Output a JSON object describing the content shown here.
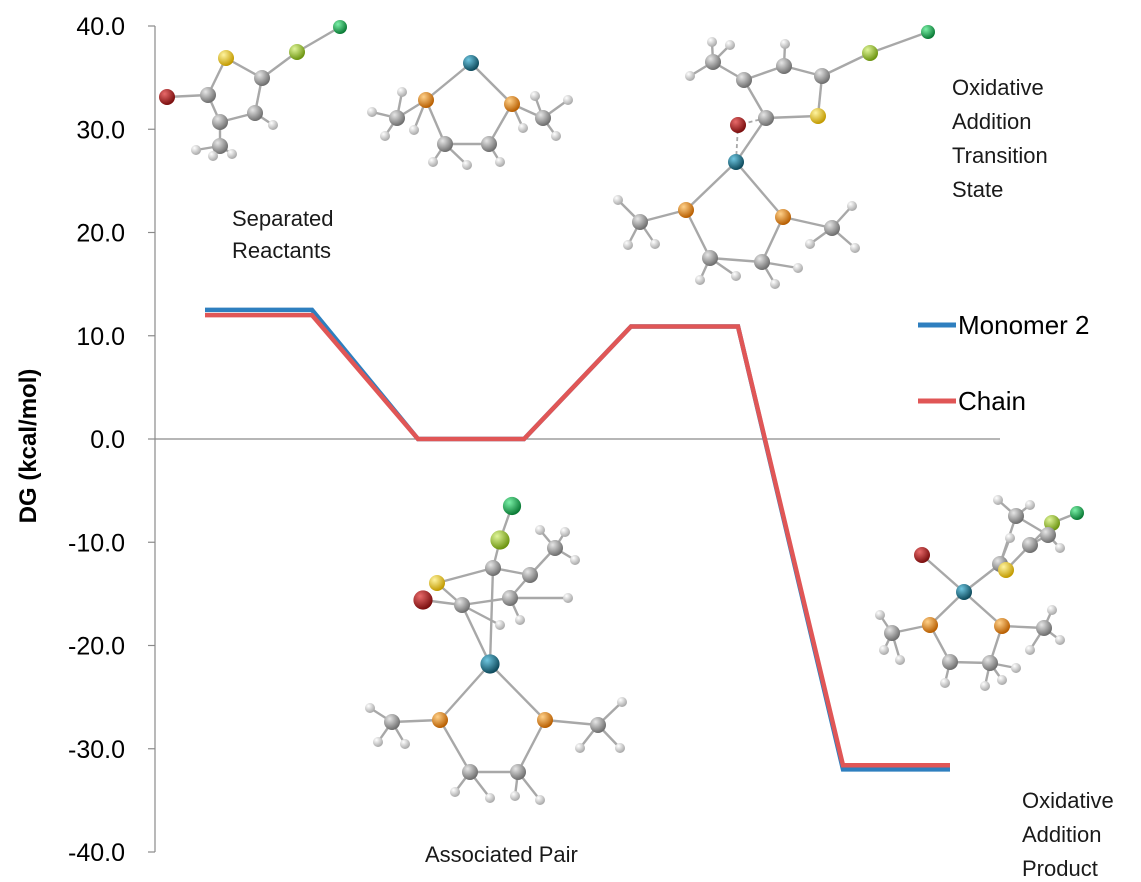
{
  "chart_data": {
    "type": "line",
    "title": "",
    "ylabel": "DG (kcal/mol)",
    "xlabel": "",
    "ylim": [
      -40,
      40
    ],
    "yticks": [
      "40.0",
      "30.0",
      "20.0",
      "10.0",
      "0.0",
      "-10.0",
      "-20.0",
      "-30.0",
      "-40.0"
    ],
    "stages": [
      "Separated Reactants",
      "Associated Pair",
      "Oxidative Addition Transition State",
      "Oxidative Addition Product"
    ],
    "series": [
      {
        "name": "Monomer 2",
        "color": "#2e7fbf",
        "values": [
          12.5,
          0.0,
          10.9,
          -32.0
        ]
      },
      {
        "name": "Chain",
        "color": "#e05656",
        "values": [
          12.0,
          0.0,
          10.9,
          -31.6
        ]
      }
    ],
    "annotations": [
      {
        "id": "separated-reactants",
        "lines": [
          "Separated",
          "Reactants"
        ]
      },
      {
        "id": "associated-pair",
        "lines": [
          "Associated Pair"
        ]
      },
      {
        "id": "ts",
        "lines": [
          "Oxidative",
          "Addition",
          "Transition",
          "State"
        ]
      },
      {
        "id": "product",
        "lines": [
          "Oxidative",
          "Addition",
          "Product"
        ]
      }
    ],
    "legend_position": "right",
    "zero_line": true
  },
  "atom_colors": {
    "carbon": "#8c8c8c",
    "hydrogen": "#d9d9d9",
    "sulfur": "#e8c21a",
    "bromine": "#a81e1e",
    "nickel": "#1a6f8a",
    "phosphorus": "#e88a1a",
    "chlorine": "#9cc81e",
    "magnesium": "#16b050"
  }
}
